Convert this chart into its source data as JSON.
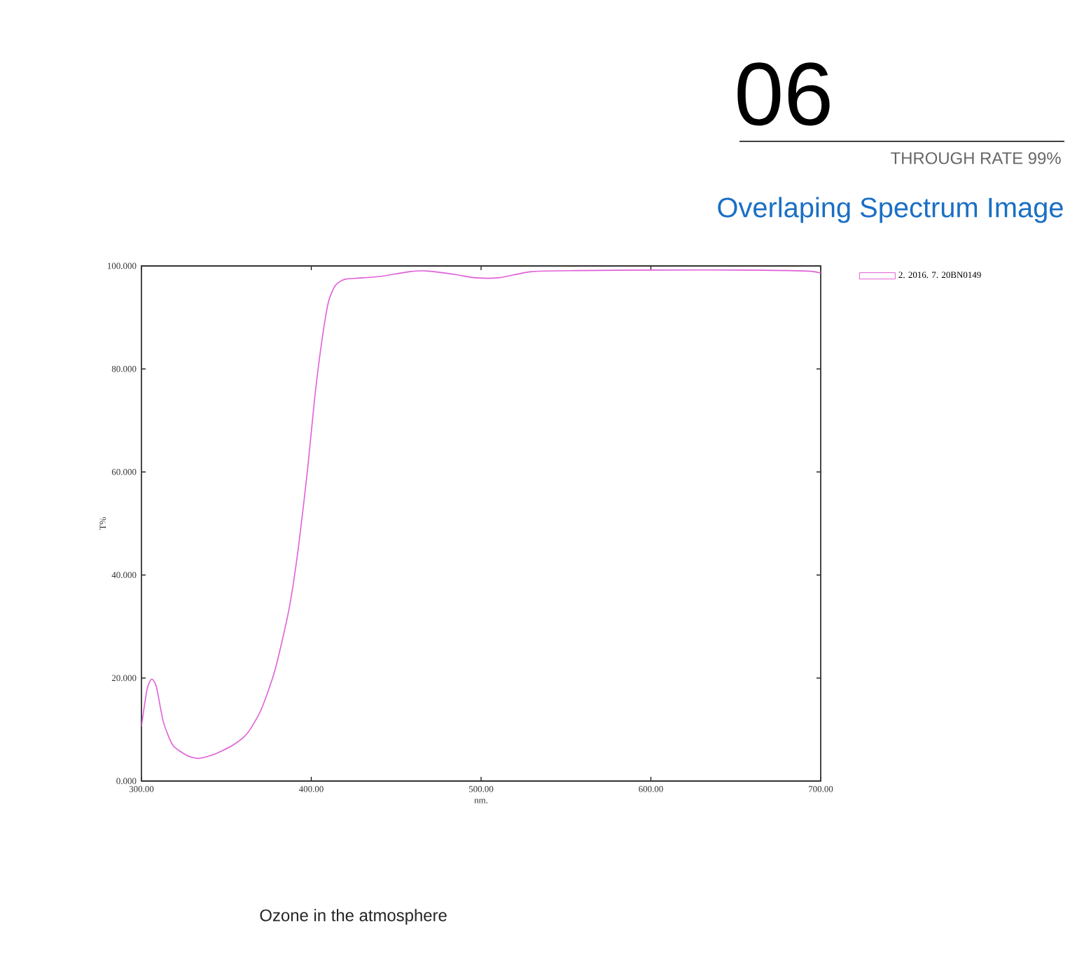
{
  "chart_data": {
    "type": "line",
    "title": "Overlaping Spectrum Image",
    "annotations": [
      "06",
      "THROUGH RATE 99%",
      "Ozone in the atmosphere"
    ],
    "xlabel": "nm.",
    "ylabel": "T%",
    "xlim": [
      300,
      700
    ],
    "ylim": [
      0,
      100
    ],
    "xticks": [
      {
        "value": 300,
        "label": "300.00"
      },
      {
        "value": 400,
        "label": "400.00"
      },
      {
        "value": 500,
        "label": "500.00"
      },
      {
        "value": 600,
        "label": "600.00"
      },
      {
        "value": 700,
        "label": "700.00"
      }
    ],
    "yticks": [
      {
        "value": 0,
        "label": "0.000"
      },
      {
        "value": 20,
        "label": "20.000"
      },
      {
        "value": 40,
        "label": "40.000"
      },
      {
        "value": 60,
        "label": "60.000"
      },
      {
        "value": 80,
        "label": "80.000"
      },
      {
        "value": 100,
        "label": "100.000"
      }
    ],
    "legend": "top right",
    "marker": "none",
    "series": [
      {
        "name": "2. 2016. 7. 20BN0149",
        "color": "#e060d8",
        "x": [
          300,
          303.3,
          306,
          308.8,
          312.9,
          318.4,
          326.6,
          333.4,
          343,
          354,
          362.2,
          370.4,
          378.6,
          386.8,
          392.3,
          397.8,
          401.9,
          406,
          410.1,
          414.2,
          419.7,
          430.7,
          441.6,
          458,
          469,
          485.5,
          496.4,
          510.5,
          529.8,
          557,
          600,
          654,
          692,
          700
        ],
        "values": [
          10.6,
          17.8,
          19.8,
          18.3,
          11.5,
          7.0,
          5.0,
          4.4,
          5.2,
          7.0,
          9.2,
          13.8,
          21.5,
          33.2,
          45,
          60.4,
          74,
          84.9,
          93,
          96.2,
          97.4,
          97.7,
          98.0,
          98.9,
          99.0,
          98.3,
          97.7,
          97.7,
          98.9,
          99.1,
          99.2,
          99.2,
          99.0,
          98.6
        ]
      }
    ]
  }
}
